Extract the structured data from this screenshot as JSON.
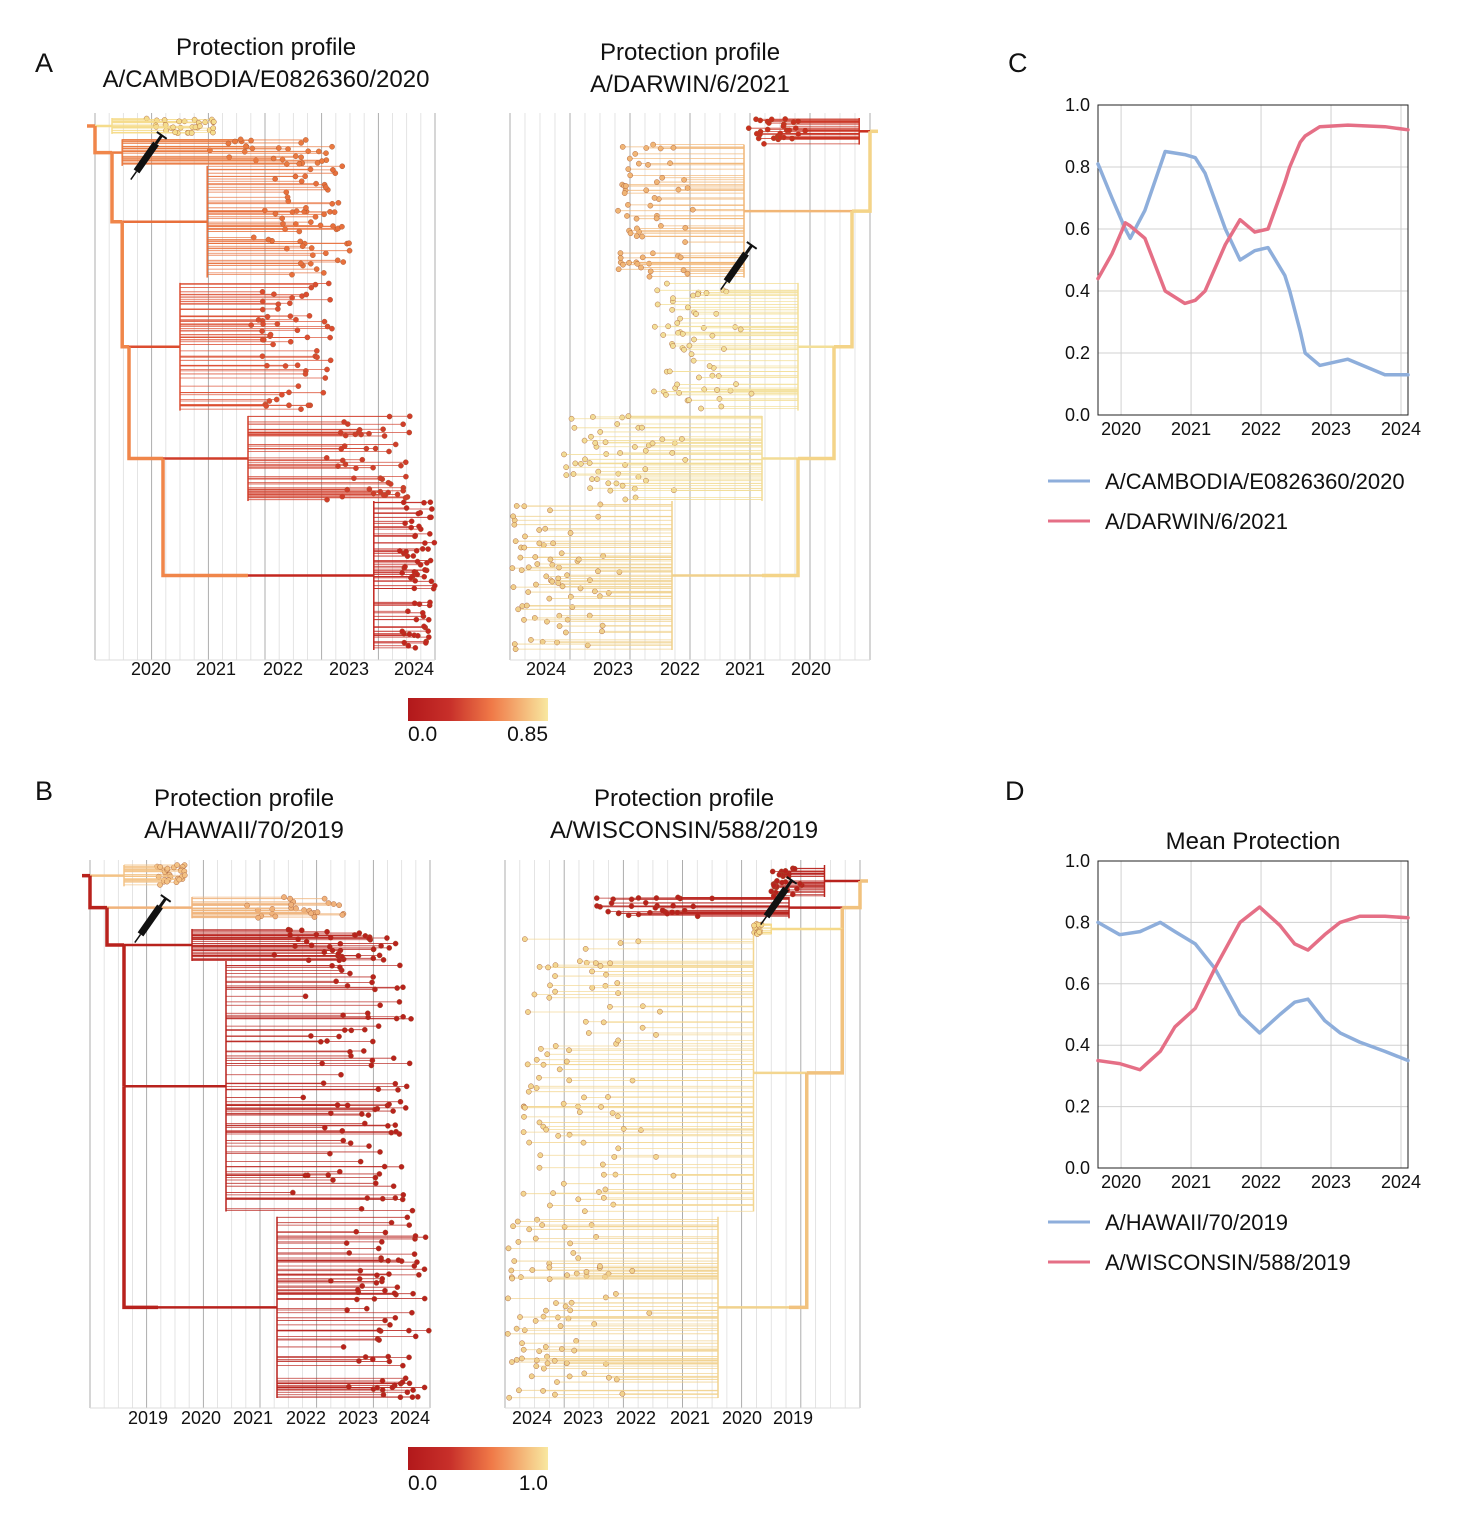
{
  "labels": [
    "A",
    "B",
    "C",
    "D"
  ],
  "trees": [
    {
      "title": [
        "Protection profile",
        "A/CAMBODIA/E0826360/2020"
      ],
      "x_labels": [
        "2020",
        "2021",
        "2022",
        "2023",
        "2024"
      ]
    },
    {
      "title": [
        "Protection profile",
        "A/DARWIN/6/2021"
      ],
      "x_labels": [
        "2024",
        "2023",
        "2022",
        "2021",
        "2020"
      ]
    },
    {
      "title": [
        "Protection profile",
        "A/HAWAII/70/2019"
      ],
      "x_labels": [
        "2019",
        "2020",
        "2021",
        "2022",
        "2023",
        "2024"
      ]
    },
    {
      "title": [
        "Protection profile",
        "A/WISCONSIN/588/2019"
      ],
      "x_labels": [
        "2024",
        "2023",
        "2022",
        "2021",
        "2020",
        "2019"
      ]
    }
  ],
  "colorbars": [
    {
      "labels": [
        "0.0",
        "0.85"
      ]
    },
    {
      "labels": [
        "0.0",
        "1.0"
      ]
    }
  ],
  "chart_data": [
    {
      "type": "line",
      "x": [
        2019.67,
        2019.87,
        2020.06,
        2020.13,
        2020.34,
        2020.63,
        2020.91,
        2021.06,
        2021.2,
        2021.49,
        2021.7,
        2021.91,
        2022.1,
        2022.34,
        2022.41,
        2022.56,
        2022.63,
        2022.84,
        2023.24,
        2023.77,
        2024.1
      ],
      "xlim": [
        2019.67,
        2024.1
      ],
      "xticks": [
        2020,
        2021,
        2022,
        2023,
        2024
      ],
      "ylim": [
        0,
        1
      ],
      "yticks": [
        {
          "value": 0,
          "label": "0.0"
        },
        0.2,
        0.4,
        0.6,
        0.8,
        {
          "value": 1,
          "label": "1.0"
        }
      ],
      "grid": true,
      "series": [
        {
          "name": "A/CAMBODIA/E0826360/2020",
          "color": "#8eaedb",
          "values": [
            0.81,
            0.7,
            0.6,
            0.57,
            0.66,
            0.85,
            0.84,
            0.83,
            0.78,
            0.6,
            0.5,
            0.53,
            0.54,
            0.45,
            0.4,
            0.27,
            0.2,
            0.16,
            0.18,
            0.13,
            0.13
          ]
        },
        {
          "name": "A/DARWIN/6/2021",
          "color": "#e56f86",
          "values": [
            0.44,
            0.52,
            0.62,
            0.61,
            0.57,
            0.4,
            0.36,
            0.37,
            0.4,
            0.55,
            0.63,
            0.59,
            0.6,
            0.75,
            0.8,
            0.88,
            0.9,
            0.93,
            0.935,
            0.93,
            0.92
          ]
        }
      ]
    },
    {
      "type": "line",
      "title": "Mean Protection",
      "x": [
        2019.67,
        2019.98,
        2020.27,
        2020.56,
        2020.77,
        2021.06,
        2021.34,
        2021.7,
        2021.98,
        2022.27,
        2022.48,
        2022.67,
        2022.91,
        2023.13,
        2023.41,
        2023.77,
        2024.1
      ],
      "xlim": [
        2019.67,
        2024.1
      ],
      "xticks": [
        2020,
        2021,
        2022,
        2023,
        2024
      ],
      "ylim": [
        0,
        1
      ],
      "yticks": [
        {
          "value": 0,
          "label": "0.0"
        },
        0.2,
        0.4,
        0.6,
        0.8,
        {
          "value": 1,
          "label": "1.0"
        }
      ],
      "grid": true,
      "series": [
        {
          "name": "A/HAWAII/70/2019",
          "color": "#8eaedb",
          "values": [
            0.8,
            0.76,
            0.77,
            0.8,
            0.77,
            0.73,
            0.65,
            0.5,
            0.44,
            0.5,
            0.54,
            0.55,
            0.48,
            0.44,
            0.41,
            0.38,
            0.35
          ]
        },
        {
          "name": "A/WISCONSIN/588/2019",
          "color": "#e56f86",
          "values": [
            0.35,
            0.34,
            0.32,
            0.38,
            0.46,
            0.52,
            0.65,
            0.8,
            0.85,
            0.79,
            0.73,
            0.71,
            0.76,
            0.8,
            0.82,
            0.82,
            0.815
          ]
        }
      ]
    }
  ]
}
